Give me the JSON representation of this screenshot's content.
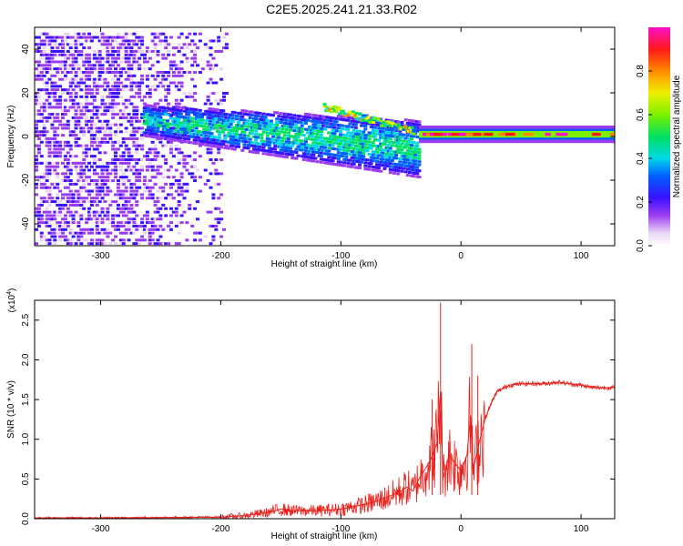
{
  "figure": {
    "title": "C2E5.2025.241.21.33.R02"
  },
  "chart_data": [
    {
      "type": "heatmap",
      "xlabel": "Height of straight line (km)",
      "ylabel": "Frequency (Hz)",
      "xlim": [
        -355,
        128
      ],
      "ylim": [
        -50,
        50
      ],
      "x_ticks": [
        -300,
        -200,
        -100,
        0,
        100
      ],
      "y_ticks": [
        -40,
        -20,
        0,
        20,
        40
      ],
      "colorbar": {
        "label": "Normalized spectral amplitude",
        "range": [
          0.0,
          1.0
        ],
        "ticks": [
          "0.0",
          "0.2",
          "0.4",
          "0.6",
          "0.8"
        ],
        "colormap": "rainbow (white-purple-blue-cyan-green-yellow-orange-red-magenta)"
      },
      "features": [
        {
          "region": "noise",
          "x_range": [
            -355,
            -195
          ],
          "freq_range": [
            -50,
            48
          ],
          "amplitude": 0.15
        },
        {
          "region": "diffuse band",
          "x_range": [
            -265,
            -35
          ],
          "freq_center_start": 8,
          "freq_center_end": -5,
          "amplitude": 0.35
        },
        {
          "region": "bright trace",
          "x_range": [
            -115,
            -40
          ],
          "freq_center_start": 14,
          "freq_center_end": 3,
          "amplitude": 0.45
        },
        {
          "region": "stable tone",
          "x_range": [
            -35,
            128
          ],
          "freq": 1,
          "amplitude": 0.9
        }
      ]
    },
    {
      "type": "line",
      "xlabel": "Height of straight line (km)",
      "ylabel": "SNR (10 * v/v)",
      "y_multiplier": "(x10",
      "y_multiplier_exp": "4",
      "y_multiplier_close": ")",
      "xlim": [
        -355,
        128
      ],
      "ylim": [
        0,
        2.75
      ],
      "x_ticks": [
        -300,
        -200,
        -100,
        0,
        100
      ],
      "y_ticks": [
        "0.0",
        "0.5",
        "1.0",
        "1.5",
        "2.0",
        "2.5"
      ],
      "series": [
        {
          "color": "#e8211c",
          "x": [
            -355,
            -300,
            -250,
            -200,
            -180,
            -160,
            -150,
            -140,
            -120,
            -100,
            -80,
            -70,
            -60,
            -50,
            -45,
            -40,
            -35,
            -30,
            -25,
            -20,
            -17,
            -15,
            -10,
            -5,
            0,
            5,
            8,
            10,
            15,
            20,
            25,
            30,
            40,
            50,
            60,
            70,
            80,
            90,
            100,
            110,
            128
          ],
          "y": [
            0.01,
            0.01,
            0.015,
            0.02,
            0.04,
            0.08,
            0.12,
            0.1,
            0.1,
            0.12,
            0.18,
            0.22,
            0.28,
            0.35,
            0.4,
            0.35,
            0.5,
            0.62,
            0.75,
            0.95,
            1.6,
            0.5,
            0.8,
            0.7,
            0.6,
            0.8,
            1.3,
            0.6,
            0.95,
            1.25,
            1.45,
            1.6,
            1.68,
            1.7,
            1.7,
            1.7,
            1.72,
            1.7,
            1.68,
            1.65,
            1.65
          ]
        }
      ],
      "spikes": [
        {
          "x": -17,
          "y": 2.72
        },
        {
          "x": 9,
          "y": 2.2
        },
        {
          "x": -24,
          "y": 1.5
        },
        {
          "x": 14,
          "y": 1.8
        }
      ]
    }
  ]
}
